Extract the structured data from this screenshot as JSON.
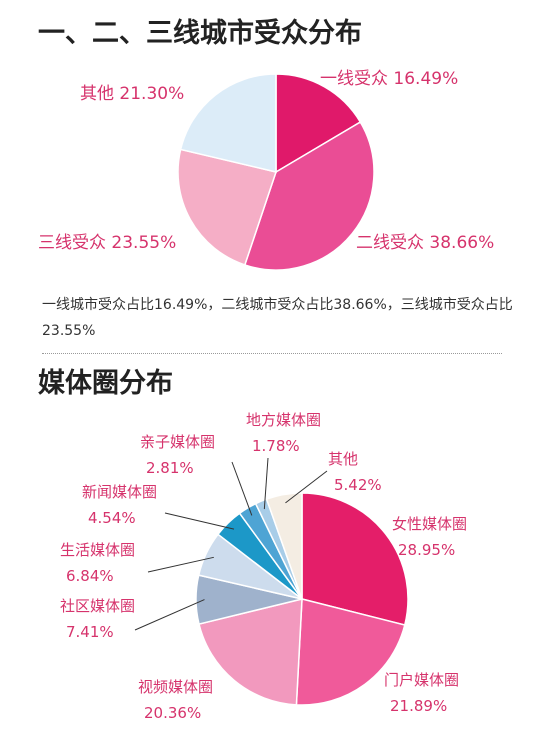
{
  "section1": {
    "title": "一、二、三线城市受众分布",
    "description": "一线城市受众占比16.49%，二线城市受众占比38.66%，三线城市受众占比23.55%"
  },
  "section2": {
    "title": "媒体圈分布"
  },
  "label_color": "#d6336c",
  "chart_data": [
    {
      "type": "pie",
      "title": "一、二、三线城市受众分布",
      "slices": [
        {
          "label": "一线受众",
          "pct_text": "16.49%",
          "value": 16.49,
          "color": "#e0196a"
        },
        {
          "label": "二线受众",
          "pct_text": "38.66%",
          "value": 38.66,
          "color": "#ea4d95"
        },
        {
          "label": "三线受众",
          "pct_text": "23.55%",
          "value": 23.55,
          "color": "#f5aec6"
        },
        {
          "label": "其他",
          "pct_text": "21.30%",
          "value": 21.3,
          "color": "#dcecf8"
        }
      ],
      "start_angle": 90,
      "label_layout": "inline"
    },
    {
      "type": "pie",
      "title": "媒体圈分布",
      "slices": [
        {
          "label": "女性媒体圈",
          "pct_text": "28.95%",
          "value": 28.95,
          "color": "#e41e69"
        },
        {
          "label": "门户媒体圈",
          "pct_text": "21.89%",
          "value": 21.89,
          "color": "#f05a9a"
        },
        {
          "label": "视频媒体圈",
          "pct_text": "20.36%",
          "value": 20.36,
          "color": "#f299be"
        },
        {
          "label": "社区媒体圈",
          "pct_text": "7.41%",
          "value": 7.41,
          "color": "#9fb2cc"
        },
        {
          "label": "生活媒体圈",
          "pct_text": "6.84%",
          "value": 6.84,
          "color": "#cddced"
        },
        {
          "label": "新闻媒体圈",
          "pct_text": "4.54%",
          "value": 4.54,
          "color": "#1c98c8"
        },
        {
          "label": "亲子媒体圈",
          "pct_text": "2.81%",
          "value": 2.81,
          "color": "#4ea4d4"
        },
        {
          "label": "地方媒体圈",
          "pct_text": "1.78%",
          "value": 1.78,
          "color": "#a8cde8"
        },
        {
          "label": "其他",
          "pct_text": "5.42%",
          "value": 5.42,
          "color": "#f4ede3"
        }
      ],
      "start_angle": 90,
      "label_layout": "stacked-with-leaders"
    }
  ]
}
